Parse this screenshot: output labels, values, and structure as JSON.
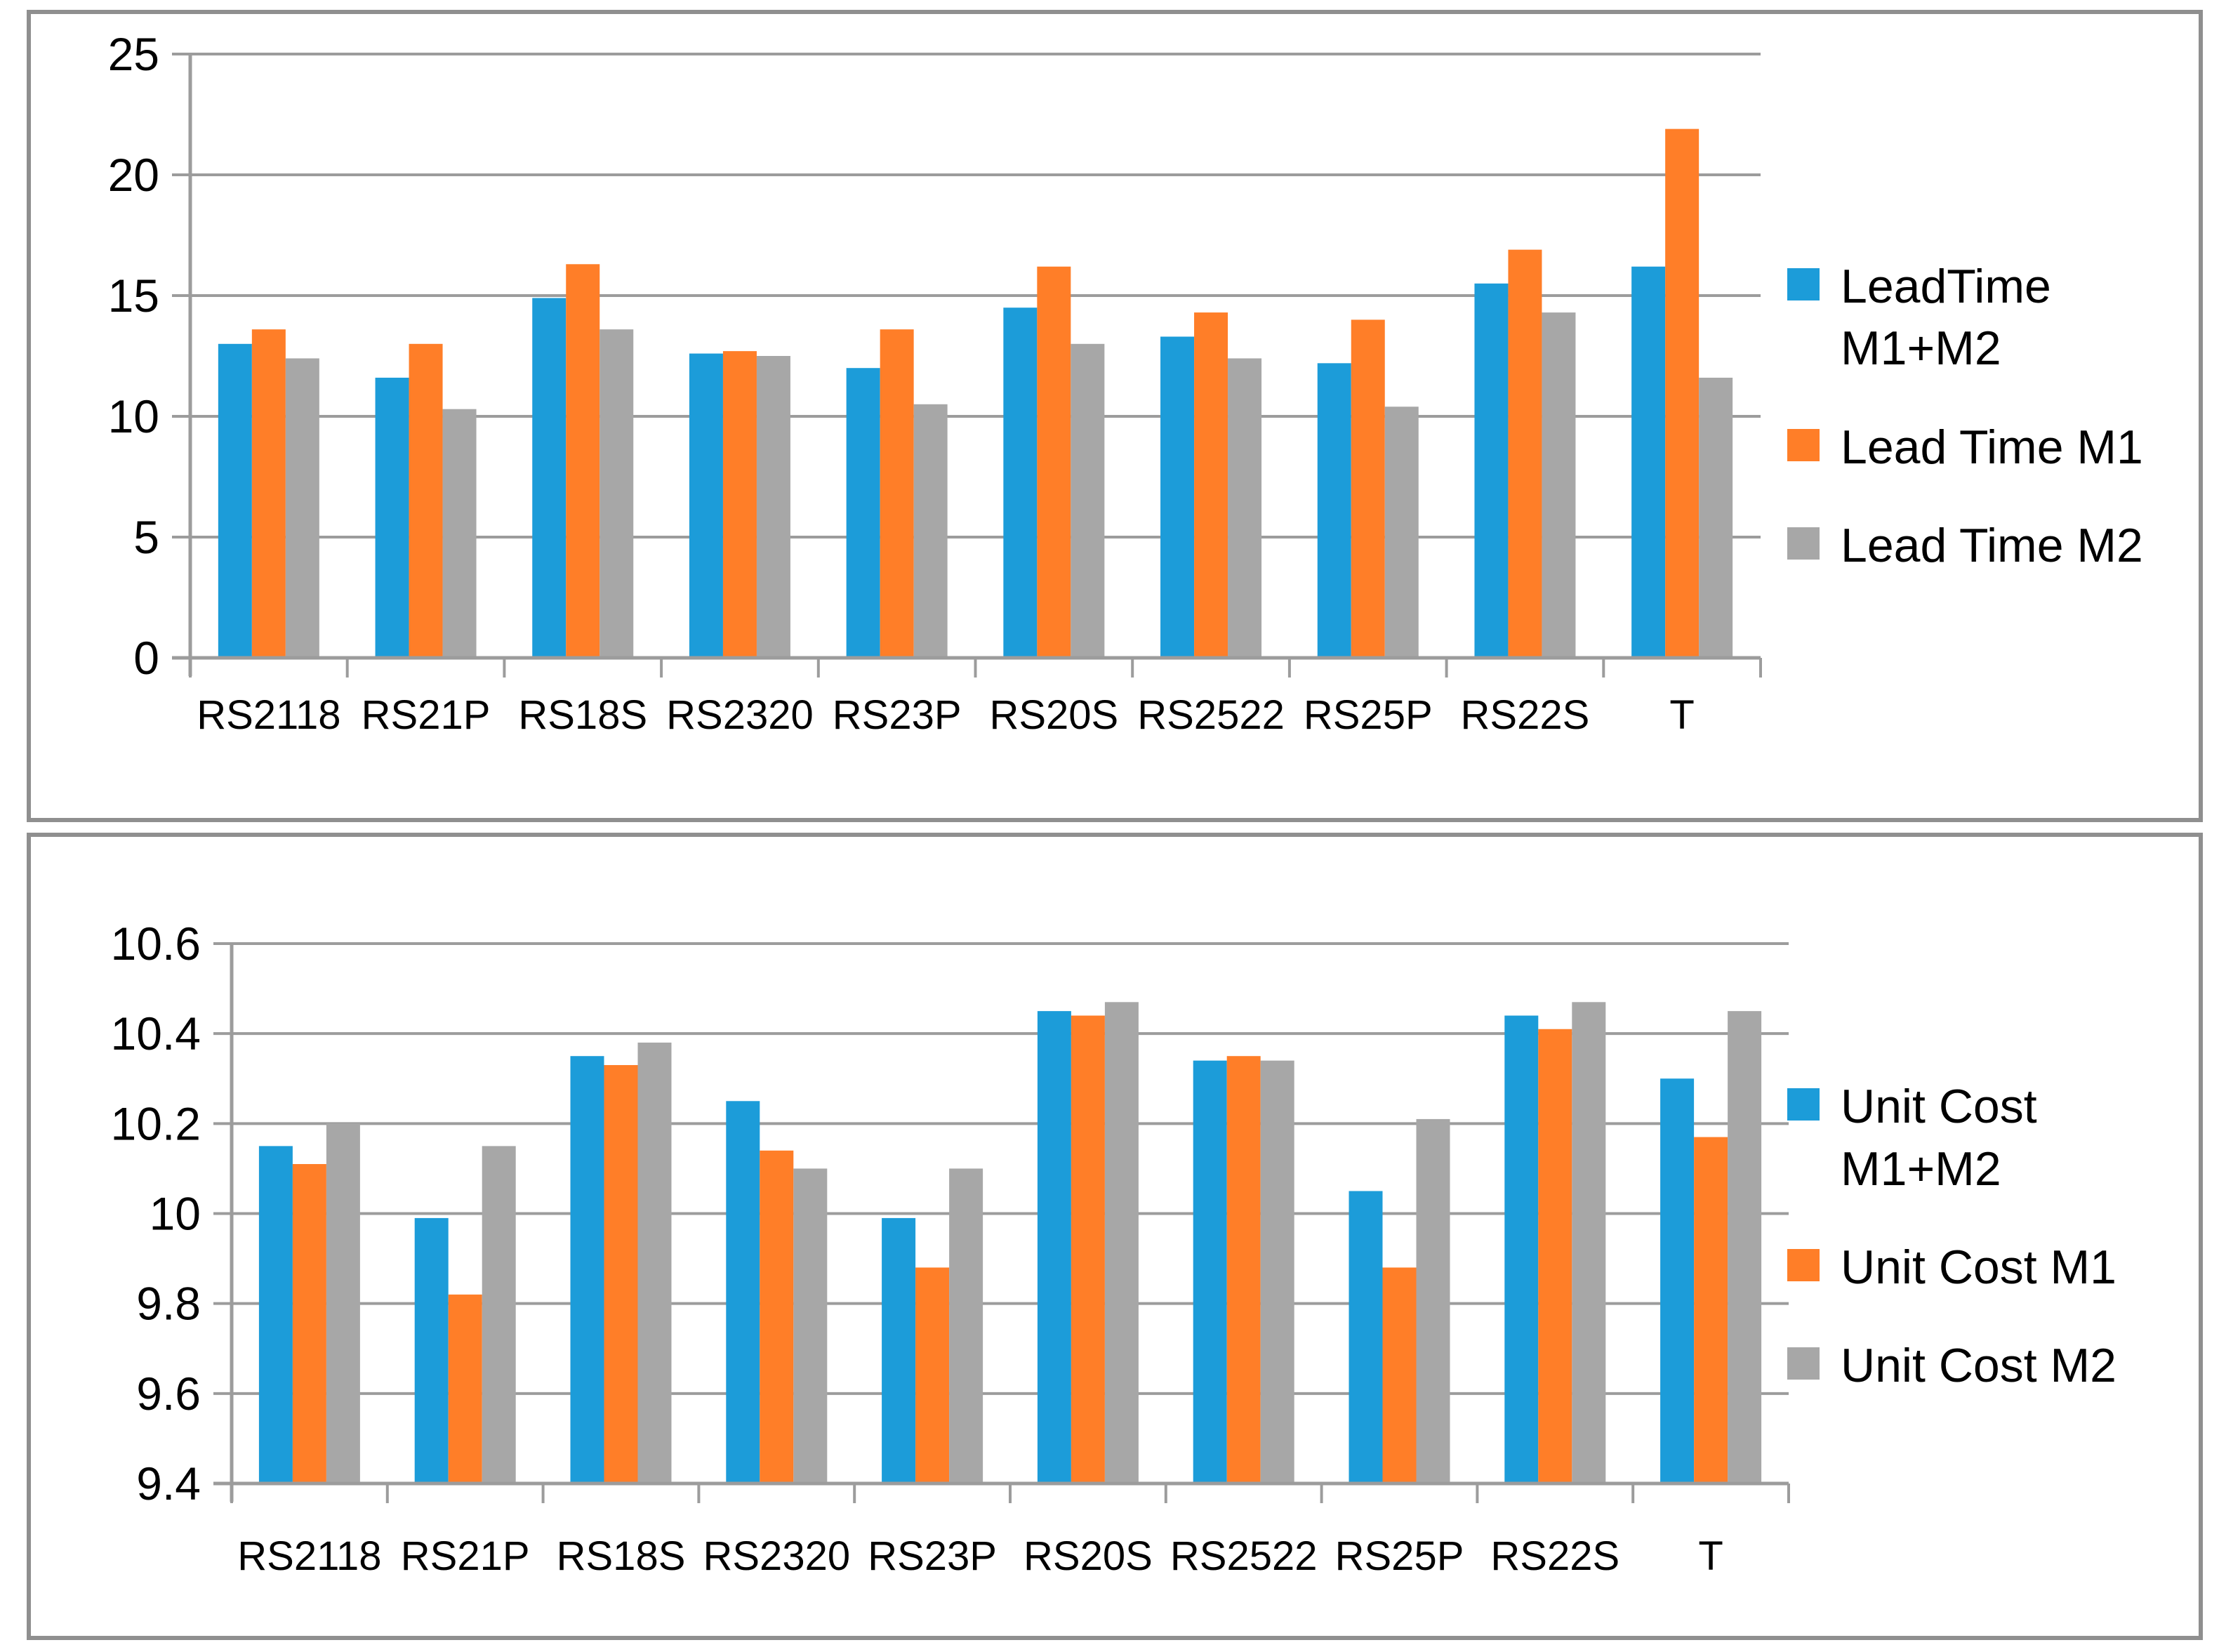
{
  "page": {
    "background_color": "#ffffff",
    "frame_border_color": "#8f8f8f"
  },
  "styles": {
    "grid_color": "#9c9c9c",
    "axis_color": "#9c9c9c",
    "text_color": "#000000",
    "series_blue": "#1c9cd9",
    "series_orange": "#ff7e28",
    "series_gray": "#a7a7a7"
  },
  "chart_data": [
    {
      "type": "bar",
      "title": "",
      "xlabel": "",
      "ylabel": "",
      "grid": true,
      "legend_position": "right",
      "categories": [
        "RS2118",
        "RS21P",
        "RS18S",
        "RS2320",
        "RS23P",
        "RS20S",
        "RS2522",
        "RS25P",
        "RS22S",
        "T"
      ],
      "ylim": [
        0,
        25
      ],
      "ytick_step": 5,
      "ytick_labels": [
        "0",
        "5",
        "10",
        "15",
        "20",
        "25"
      ],
      "series": [
        {
          "name": "LeadTime M1+M2",
          "color": "#1c9cd9",
          "values": [
            13.0,
            11.6,
            14.9,
            12.6,
            12.0,
            14.5,
            13.3,
            12.2,
            15.5,
            16.2
          ]
        },
        {
          "name": "Lead Time M1",
          "color": "#ff7e28",
          "values": [
            13.6,
            13.0,
            16.3,
            12.7,
            13.6,
            16.2,
            14.3,
            14.0,
            16.9,
            21.9
          ]
        },
        {
          "name": "Lead Time M2",
          "color": "#a7a7a7",
          "values": [
            12.4,
            10.3,
            13.6,
            12.5,
            10.5,
            13.0,
            12.4,
            10.4,
            14.3,
            11.6
          ]
        }
      ]
    },
    {
      "type": "bar",
      "title": "",
      "xlabel": "",
      "ylabel": "",
      "grid": true,
      "legend_position": "right",
      "categories": [
        "RS2118",
        "RS21P",
        "RS18S",
        "RS2320",
        "RS23P",
        "RS20S",
        "RS2522",
        "RS25P",
        "RS22S",
        "T"
      ],
      "ylim": [
        9.4,
        10.6
      ],
      "ytick_step": 0.2,
      "ytick_labels": [
        "9.4",
        "9.6",
        "9.8",
        "10",
        "10.2",
        "10.4",
        "10.6"
      ],
      "series": [
        {
          "name": "Unit Cost M1+M2",
          "color": "#1c9cd9",
          "values": [
            10.15,
            9.99,
            10.35,
            10.25,
            9.99,
            10.45,
            10.34,
            10.05,
            10.44,
            10.3
          ]
        },
        {
          "name": "Unit Cost M1",
          "color": "#ff7e28",
          "values": [
            10.11,
            9.82,
            10.33,
            10.14,
            9.88,
            10.44,
            10.35,
            9.88,
            10.41,
            10.17
          ]
        },
        {
          "name": "Unit Cost M2",
          "color": "#a7a7a7",
          "values": [
            10.2,
            10.15,
            10.38,
            10.1,
            10.1,
            10.47,
            10.34,
            10.21,
            10.47,
            10.45
          ]
        }
      ]
    }
  ]
}
